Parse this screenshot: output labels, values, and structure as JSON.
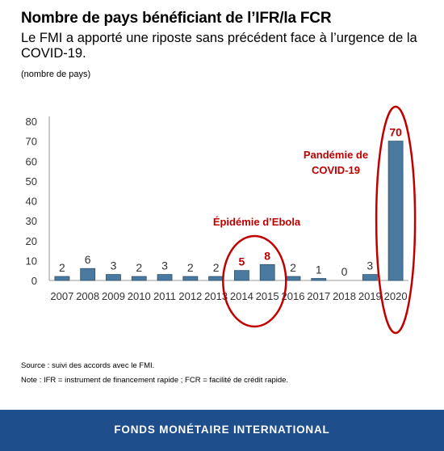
{
  "header": {
    "title": "Nombre de pays bénéficiant de l’IFR/la FCR",
    "subtitle": "Le FMI a apporté une riposte sans précédent face à l’urgence de la COVID-19.",
    "unit": "(nombre de pays)"
  },
  "chart_data": {
    "type": "bar",
    "categories": [
      "2007",
      "2008",
      "2009",
      "2010",
      "2011",
      "2012",
      "2013",
      "2014",
      "2015",
      "2016",
      "2017",
      "2018",
      "2019",
      "2020"
    ],
    "values": [
      2,
      6,
      3,
      2,
      3,
      2,
      2,
      5,
      8,
      2,
      1,
      0,
      3,
      70
    ],
    "highlighted_indices": [
      7,
      8,
      13
    ],
    "ylim": [
      0,
      80
    ],
    "yticks": [
      0,
      10,
      20,
      30,
      40,
      50,
      60,
      70,
      80
    ],
    "grid": false,
    "bar_color": "#4a7aa0",
    "highlight_color": "#c00000",
    "annotations": [
      {
        "text": "Épidémie d’Ebola",
        "applies_to": [
          "2014",
          "2015"
        ]
      },
      {
        "text": "Pandémie de COVID-19",
        "lines": [
          "Pandémie de",
          "COVID-19"
        ],
        "applies_to": [
          "2020"
        ]
      }
    ]
  },
  "footer": {
    "source": "Source : suivi des accords avec le FMI.",
    "note": "Note : IFR = instrument de financement rapide ; FCR = facilité de crédit rapide.",
    "organization": "FONDS MONÉTAIRE INTERNATIONAL"
  },
  "colors": {
    "footer_background": "#1f4e8c",
    "annotation": "#c00000"
  }
}
